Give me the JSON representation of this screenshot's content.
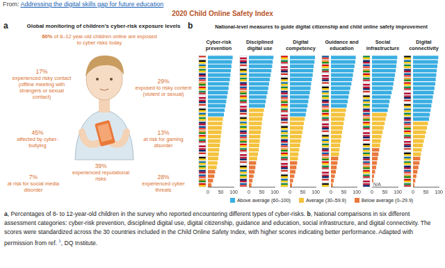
{
  "source": {
    "prefix": "From: ",
    "link": "Addressing the digital skills gap for future education"
  },
  "title": "2020 Child Online Safety Index",
  "panel_a": {
    "letter": "a",
    "heading": "Global monitoring of children's cyber-risk exposure levels",
    "headline": {
      "label": "60%",
      "text": "of 8–12 year-old children online are exposed to cyber risks today"
    },
    "items": [
      {
        "label": "17%",
        "text": "experienced risky contact (offline meeting with strangers or sexual contact)"
      },
      {
        "label": "29%",
        "text": "exposed to risky content (violent or sexual)"
      },
      {
        "label": "45%",
        "text": "affected by cyber-bullying"
      },
      {
        "label": "13%",
        "text": "at risk for gaming disorder"
      },
      {
        "label": "39%",
        "text": "experienced reputational risks"
      },
      {
        "label": "7%",
        "text": "at risk for social media disorder"
      },
      {
        "label": "28%",
        "text": "experienced cyber threats"
      }
    ]
  },
  "panel_b": {
    "letter": "b",
    "heading": "National-level measures to guide digital citizenship and child online safety improvement"
  },
  "legend_items": [
    {
      "label": "Above average (60–100)",
      "color": "#3aaee2"
    },
    {
      "label": "Average (30–59.9)",
      "color": "#f4c23c"
    },
    {
      "label": "Below average (0–29.9)",
      "color": "#e9793b"
    }
  ],
  "chart_data": [
    {
      "type": "bar",
      "orientation": "horizontal",
      "title": "Cyber-risk prevention",
      "grid": false,
      "tick_labels": "x",
      "categories": [
        null,
        null,
        null,
        null,
        null,
        null,
        null,
        null,
        null,
        null,
        null,
        null,
        null,
        null,
        null,
        null,
        null,
        null,
        null,
        null,
        null,
        null,
        null,
        null,
        null,
        null,
        null,
        null,
        null,
        null
      ],
      "values": [
        96,
        93,
        91,
        89,
        87,
        85,
        82,
        80,
        77,
        74,
        71,
        68,
        65,
        62,
        58,
        56,
        54,
        52,
        50,
        48,
        46,
        44,
        42,
        40,
        37,
        34,
        28,
        25,
        20,
        14
      ],
      "colors": [
        "#3aaee2",
        "#3aaee2",
        "#3aaee2",
        "#3aaee2",
        "#3aaee2",
        "#3aaee2",
        "#3aaee2",
        "#3aaee2",
        "#3aaee2",
        "#3aaee2",
        "#3aaee2",
        "#3aaee2",
        "#3aaee2",
        "#3aaee2",
        "#f4c23c",
        "#f4c23c",
        "#f4c23c",
        "#f4c23c",
        "#f4c23c",
        "#f4c23c",
        "#f4c23c",
        "#f4c23c",
        "#f4c23c",
        "#f4c23c",
        "#f4c23c",
        "#f4c23c",
        "#e9793b",
        "#e9793b",
        "#e9793b",
        "#e9793b"
      ],
      "xlim": [
        0,
        100
      ],
      "xticks": [
        0,
        50,
        100
      ]
    },
    {
      "type": "bar",
      "orientation": "horizontal",
      "title": "Disciplined digital use",
      "grid": false,
      "tick_labels": "x",
      "categories": [
        null,
        null,
        null,
        null,
        null,
        null,
        null,
        null,
        null,
        null,
        null,
        null,
        null,
        null,
        null,
        null,
        null,
        null,
        null,
        null,
        null,
        null,
        null,
        null,
        null,
        null,
        null,
        null,
        null,
        null
      ],
      "values": [
        95,
        92,
        90,
        87,
        84,
        81,
        78,
        75,
        72,
        68,
        65,
        62,
        58,
        55,
        52,
        50,
        48,
        46,
        44,
        42,
        40,
        38,
        35,
        32,
        28,
        25,
        22,
        18,
        14,
        10
      ],
      "colors": [
        "#3aaee2",
        "#3aaee2",
        "#3aaee2",
        "#3aaee2",
        "#3aaee2",
        "#3aaee2",
        "#3aaee2",
        "#3aaee2",
        "#3aaee2",
        "#3aaee2",
        "#3aaee2",
        "#3aaee2",
        "#f4c23c",
        "#f4c23c",
        "#f4c23c",
        "#f4c23c",
        "#f4c23c",
        "#f4c23c",
        "#f4c23c",
        "#f4c23c",
        "#f4c23c",
        "#f4c23c",
        "#f4c23c",
        "#f4c23c",
        "#e9793b",
        "#e9793b",
        "#e9793b",
        "#e9793b",
        "#e9793b",
        "#e9793b"
      ],
      "xlim": [
        0,
        100
      ],
      "xticks": [
        0,
        50,
        100
      ]
    },
    {
      "type": "bar",
      "orientation": "horizontal",
      "title": "Digital competency",
      "grid": false,
      "tick_labels": "x",
      "categories": [
        null,
        null,
        null,
        null,
        null,
        null,
        null,
        null,
        null,
        null,
        null,
        null,
        null,
        null,
        null,
        null,
        null,
        null,
        null,
        null,
        null,
        null,
        null,
        null,
        null,
        null,
        null,
        null,
        null,
        null
      ],
      "values": [
        97,
        95,
        92,
        90,
        88,
        85,
        82,
        80,
        77,
        74,
        71,
        68,
        64,
        61,
        57,
        54,
        51,
        48,
        45,
        42,
        39,
        36,
        33,
        31,
        28,
        25,
        21,
        17,
        12,
        8
      ],
      "colors": [
        "#3aaee2",
        "#3aaee2",
        "#3aaee2",
        "#3aaee2",
        "#3aaee2",
        "#3aaee2",
        "#3aaee2",
        "#3aaee2",
        "#3aaee2",
        "#3aaee2",
        "#3aaee2",
        "#3aaee2",
        "#3aaee2",
        "#3aaee2",
        "#f4c23c",
        "#f4c23c",
        "#f4c23c",
        "#f4c23c",
        "#f4c23c",
        "#f4c23c",
        "#f4c23c",
        "#f4c23c",
        "#f4c23c",
        "#f4c23c",
        "#e9793b",
        "#e9793b",
        "#e9793b",
        "#e9793b",
        "#e9793b",
        "#e9793b"
      ],
      "xlim": [
        0,
        100
      ],
      "xticks": [
        0,
        50,
        100
      ]
    },
    {
      "type": "bar",
      "orientation": "horizontal",
      "title": "Guidance and education",
      "grid": false,
      "tick_labels": "x",
      "categories": [
        null,
        null,
        null,
        null,
        null,
        null,
        null,
        null,
        null,
        null,
        null,
        null,
        null,
        null,
        null,
        null,
        null,
        null,
        null,
        null,
        null,
        null,
        null,
        null,
        null,
        null,
        null,
        null,
        null,
        null
      ],
      "values": [
        96,
        94,
        91,
        88,
        85,
        82,
        79,
        75,
        71,
        68,
        65,
        61,
        58,
        55,
        52,
        49,
        46,
        43,
        41,
        38,
        35,
        33,
        31,
        28,
        25,
        22,
        19,
        15,
        11,
        7
      ],
      "colors": [
        "#3aaee2",
        "#3aaee2",
        "#3aaee2",
        "#3aaee2",
        "#3aaee2",
        "#3aaee2",
        "#3aaee2",
        "#3aaee2",
        "#3aaee2",
        "#3aaee2",
        "#3aaee2",
        "#3aaee2",
        "#f4c23c",
        "#f4c23c",
        "#f4c23c",
        "#f4c23c",
        "#f4c23c",
        "#f4c23c",
        "#f4c23c",
        "#f4c23c",
        "#f4c23c",
        "#f4c23c",
        "#f4c23c",
        "#e9793b",
        "#e9793b",
        "#e9793b",
        "#e9793b",
        "#e9793b",
        "#e9793b",
        "#e9793b"
      ],
      "xlim": [
        0,
        100
      ],
      "xticks": [
        0,
        50,
        100
      ]
    },
    {
      "type": "bar",
      "orientation": "horizontal",
      "title": "Social infrastructure",
      "grid": false,
      "tick_labels": "x",
      "categories": [
        null,
        null,
        null,
        null,
        null,
        null,
        null,
        null,
        null,
        null,
        null,
        null,
        null,
        null,
        null,
        null,
        null,
        null,
        null,
        null,
        null,
        null,
        null,
        null,
        null,
        null,
        null,
        null,
        null,
        null
      ],
      "values": [
        98,
        96,
        94,
        92,
        89,
        86,
        83,
        80,
        76,
        72,
        68,
        65,
        61,
        57,
        53,
        49,
        45,
        41,
        37,
        34,
        31,
        28,
        25,
        22,
        19,
        16,
        12,
        8,
        5,
        null
      ],
      "value_labels": [
        null,
        null,
        null,
        null,
        null,
        null,
        null,
        null,
        null,
        null,
        null,
        null,
        null,
        null,
        null,
        null,
        null,
        null,
        null,
        null,
        null,
        null,
        null,
        null,
        null,
        null,
        null,
        null,
        null,
        "N/A"
      ],
      "colors": [
        "#3aaee2",
        "#3aaee2",
        "#3aaee2",
        "#3aaee2",
        "#3aaee2",
        "#3aaee2",
        "#3aaee2",
        "#3aaee2",
        "#3aaee2",
        "#3aaee2",
        "#3aaee2",
        "#3aaee2",
        "#3aaee2",
        "#f4c23c",
        "#f4c23c",
        "#f4c23c",
        "#f4c23c",
        "#f4c23c",
        "#f4c23c",
        "#f4c23c",
        "#f4c23c",
        "#e9793b",
        "#e9793b",
        "#e9793b",
        "#e9793b",
        "#e9793b",
        "#e9793b",
        "#e9793b",
        "#e9793b",
        null
      ],
      "xlim": [
        0,
        100
      ],
      "xticks": [
        0,
        50,
        100
      ]
    },
    {
      "type": "bar",
      "orientation": "horizontal",
      "title": "Digital connectivity",
      "grid": false,
      "tick_labels": "x",
      "categories": [
        null,
        null,
        null,
        null,
        null,
        null,
        null,
        null,
        null,
        null,
        null,
        null,
        null,
        null,
        null,
        null,
        null,
        null,
        null,
        null,
        null,
        null,
        null,
        null,
        null,
        null,
        null,
        null,
        null,
        null
      ],
      "values": [
        98,
        96,
        94,
        92,
        90,
        88,
        86,
        83,
        80,
        77,
        74,
        71,
        68,
        65,
        62,
        58,
        54,
        50,
        46,
        42,
        38,
        34,
        31,
        28,
        25,
        21,
        17,
        13,
        9,
        5
      ],
      "colors": [
        "#3aaee2",
        "#3aaee2",
        "#3aaee2",
        "#3aaee2",
        "#3aaee2",
        "#3aaee2",
        "#3aaee2",
        "#3aaee2",
        "#3aaee2",
        "#3aaee2",
        "#3aaee2",
        "#3aaee2",
        "#3aaee2",
        "#3aaee2",
        "#3aaee2",
        "#f4c23c",
        "#f4c23c",
        "#f4c23c",
        "#f4c23c",
        "#f4c23c",
        "#f4c23c",
        "#f4c23c",
        "#f4c23c",
        "#e9793b",
        "#e9793b",
        "#e9793b",
        "#e9793b",
        "#e9793b",
        "#e9793b",
        "#e9793b"
      ],
      "xlim": [
        0,
        100
      ],
      "xticks": [
        0,
        50,
        100
      ]
    }
  ],
  "caption": {
    "parts": [
      {
        "bold": "a",
        "text": ", Percentages of 8- to 12-year-old children in the survey who reported encountering different types of cyber-risks. "
      },
      {
        "bold": "b",
        "text": ", National comparisons in six different assessment categories: cyber-risk prevention, disciplined digital use, digital citizenship, guidance and education, social infrastructure, and digital connectivity. The scores were standardized across the 30 countries included in the Child Online Safety Index, with higher scores indicating better performance. Adapted with permission from ref. "
      }
    ],
    "ref": "1",
    "tail": ", DQ Institute."
  }
}
